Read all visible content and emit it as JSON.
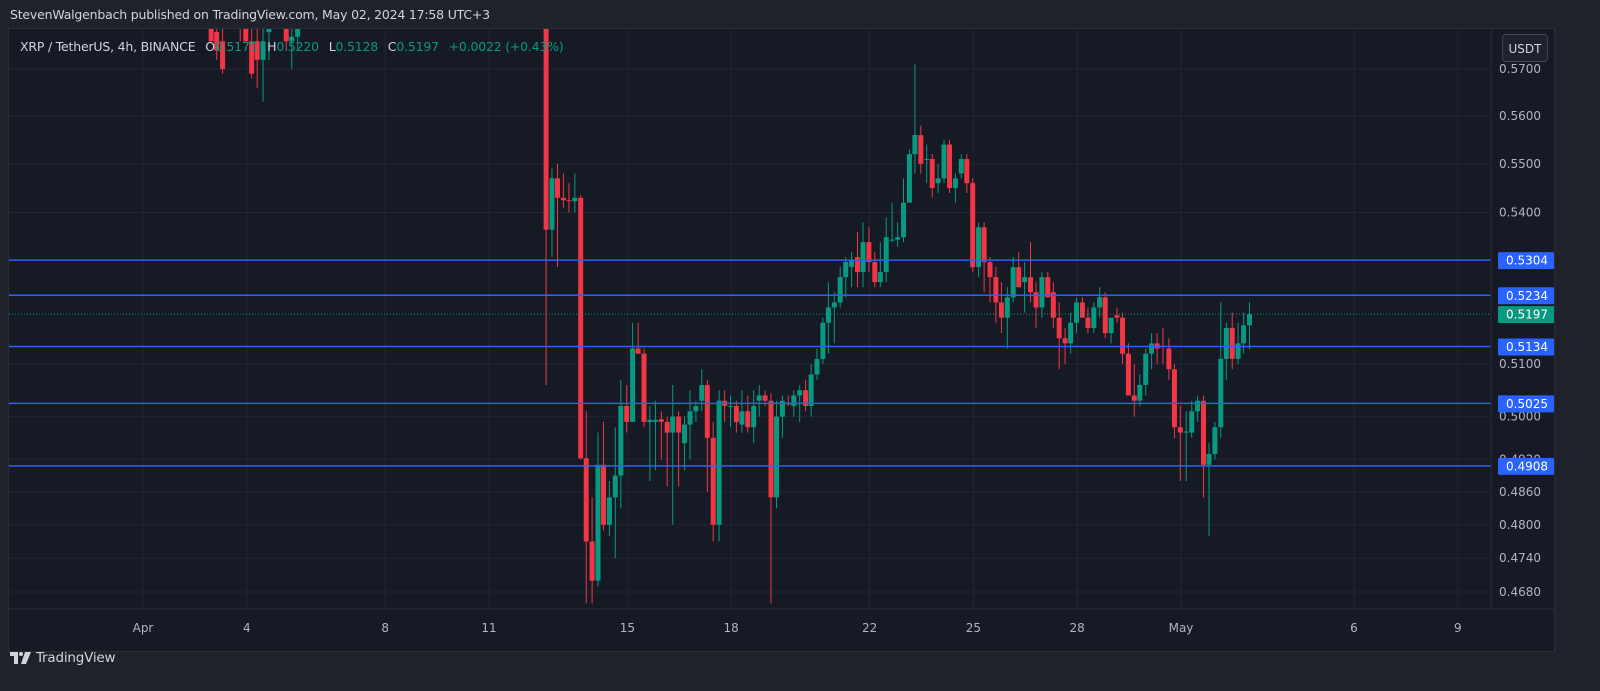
{
  "publisher_line": "StevenWalgenbach published on TradingView.com, May 02, 2024 17:58 UTC+3",
  "legend": {
    "symbol": "XRP / TetherUS, 4h, BINANCE",
    "o_label": "O",
    "o_value": "0.5175",
    "h_label": "H",
    "h_value": "0.5220",
    "l_label": "L",
    "l_value": "0.5128",
    "c_label": "C",
    "c_value": "0.5197",
    "change": "+0.0022 (+0.43%)"
  },
  "currency_button": "USDT",
  "footer": {
    "brand": "TradingView"
  },
  "colors": {
    "background": "#161a25",
    "grid": "#232632",
    "up": "#089981",
    "down": "#f23645",
    "level_line": "#2962ff",
    "last_price": "#089981",
    "axis_text": "#b2b5be"
  },
  "chart_data": {
    "type": "candlestick",
    "title": "XRP / TetherUS, 4h, BINANCE",
    "scale": "log",
    "ylabel": "USDT",
    "ylim": [
      0.4655,
      0.5735
    ],
    "y_ticks": [
      "0.5700",
      "0.5600",
      "0.5500",
      "0.5400",
      "0.5100",
      "0.5000",
      "0.4920",
      "0.4860",
      "0.4800",
      "0.4740",
      "0.4680"
    ],
    "x_ticks": [
      {
        "label": "Apr",
        "day": 0
      },
      {
        "label": "4",
        "day": 3
      },
      {
        "label": "8",
        "day": 7
      },
      {
        "label": "11",
        "day": 10
      },
      {
        "label": "15",
        "day": 14
      },
      {
        "label": "18",
        "day": 17
      },
      {
        "label": "22",
        "day": 21
      },
      {
        "label": "25",
        "day": 24
      },
      {
        "label": "28",
        "day": 27
      },
      {
        "label": "May",
        "day": 30
      },
      {
        "label": "6",
        "day": 35
      },
      {
        "label": "9",
        "day": 38
      }
    ],
    "horizontal_levels": [
      0.5304,
      0.5234,
      0.5134,
      0.5025,
      0.4908
    ],
    "last_price": 0.5197,
    "last_price_label": "0.5197",
    "level_labels": [
      "0.5304",
      "0.5234",
      "0.5134",
      "0.5025",
      "0.4908"
    ],
    "candles_note": "day offset from Apr 1 (4h candles), OHLC values",
    "candles": [
      {
        "d": 1.97,
        "o": 0.58,
        "h": 0.585,
        "l": 0.576,
        "c": 0.576
      },
      {
        "d": 2.13,
        "o": 0.578,
        "h": 0.582,
        "l": 0.572,
        "c": 0.574
      },
      {
        "d": 2.3,
        "o": 0.576,
        "h": 0.58,
        "l": 0.569,
        "c": 0.57
      },
      {
        "d": 2.81,
        "o": 0.581,
        "h": 0.583,
        "l": 0.576,
        "c": 0.58
      },
      {
        "d": 2.97,
        "o": 0.58,
        "h": 0.586,
        "l": 0.577,
        "c": 0.576
      },
      {
        "d": 3.14,
        "o": 0.576,
        "h": 0.579,
        "l": 0.568,
        "c": 0.569
      },
      {
        "d": 3.3,
        "o": 0.576,
        "h": 0.579,
        "l": 0.566,
        "c": 0.572
      },
      {
        "d": 3.47,
        "o": 0.572,
        "h": 0.584,
        "l": 0.563,
        "c": 0.576
      },
      {
        "d": 3.64,
        "o": 0.578,
        "h": 0.584,
        "l": 0.572,
        "c": 0.581
      },
      {
        "d": 4.14,
        "o": 0.58,
        "h": 0.584,
        "l": 0.574,
        "c": 0.576
      },
      {
        "d": 4.3,
        "o": 0.576,
        "h": 0.581,
        "l": 0.57,
        "c": 0.577
      },
      {
        "d": 4.47,
        "o": 0.577,
        "h": 0.586,
        "l": 0.574,
        "c": 0.583
      },
      {
        "d": 11.65,
        "o": 0.579,
        "h": 0.58,
        "l": 0.506,
        "c": 0.5365
      },
      {
        "d": 11.82,
        "o": 0.5365,
        "h": 0.549,
        "l": 0.531,
        "c": 0.547
      },
      {
        "d": 11.98,
        "o": 0.547,
        "h": 0.55,
        "l": 0.529,
        "c": 0.543
      },
      {
        "d": 12.15,
        "o": 0.543,
        "h": 0.548,
        "l": 0.541,
        "c": 0.5425
      },
      {
        "d": 12.31,
        "o": 0.5425,
        "h": 0.546,
        "l": 0.54,
        "c": 0.5423
      },
      {
        "d": 12.48,
        "o": 0.5423,
        "h": 0.548,
        "l": 0.54,
        "c": 0.543
      },
      {
        "d": 12.65,
        "o": 0.543,
        "h": 0.5435,
        "l": 0.492,
        "c": 0.4922
      },
      {
        "d": 12.81,
        "o": 0.4922,
        "h": 0.501,
        "l": 0.466,
        "c": 0.477
      },
      {
        "d": 12.98,
        "o": 0.477,
        "h": 0.485,
        "l": 0.466,
        "c": 0.47
      },
      {
        "d": 13.15,
        "o": 0.47,
        "h": 0.497,
        "l": 0.469,
        "c": 0.491
      },
      {
        "d": 13.31,
        "o": 0.491,
        "h": 0.499,
        "l": 0.479,
        "c": 0.48
      },
      {
        "d": 13.48,
        "o": 0.48,
        "h": 0.488,
        "l": 0.478,
        "c": 0.485
      },
      {
        "d": 13.65,
        "o": 0.485,
        "h": 0.498,
        "l": 0.474,
        "c": 0.489
      },
      {
        "d": 13.81,
        "o": 0.489,
        "h": 0.507,
        "l": 0.483,
        "c": 0.502
      },
      {
        "d": 13.98,
        "o": 0.502,
        "h": 0.506,
        "l": 0.497,
        "c": 0.499
      },
      {
        "d": 14.15,
        "o": 0.499,
        "h": 0.518,
        "l": 0.499,
        "c": 0.513
      },
      {
        "d": 14.31,
        "o": 0.513,
        "h": 0.518,
        "l": 0.512,
        "c": 0.512
      },
      {
        "d": 14.48,
        "o": 0.512,
        "h": 0.513,
        "l": 0.498,
        "c": 0.499
      },
      {
        "d": 14.65,
        "o": 0.499,
        "h": 0.502,
        "l": 0.488,
        "c": 0.4994
      },
      {
        "d": 14.81,
        "o": 0.499,
        "h": 0.503,
        "l": 0.49,
        "c": 0.4994
      },
      {
        "d": 14.98,
        "o": 0.4995,
        "h": 0.501,
        "l": 0.492,
        "c": 0.499
      },
      {
        "d": 15.15,
        "o": 0.499,
        "h": 0.5,
        "l": 0.487,
        "c": 0.497
      },
      {
        "d": 15.31,
        "o": 0.497,
        "h": 0.506,
        "l": 0.48,
        "c": 0.5
      },
      {
        "d": 15.48,
        "o": 0.5,
        "h": 0.501,
        "l": 0.487,
        "c": 0.497
      },
      {
        "d": 15.65,
        "o": 0.495,
        "h": 0.5,
        "l": 0.49,
        "c": 0.4985
      },
      {
        "d": 15.81,
        "o": 0.4985,
        "h": 0.505,
        "l": 0.492,
        "c": 0.501
      },
      {
        "d": 15.98,
        "o": 0.501,
        "h": 0.503,
        "l": 0.499,
        "c": 0.502
      },
      {
        "d": 16.15,
        "o": 0.503,
        "h": 0.509,
        "l": 0.501,
        "c": 0.506
      },
      {
        "d": 16.31,
        "o": 0.506,
        "h": 0.507,
        "l": 0.486,
        "c": 0.496
      },
      {
        "d": 16.48,
        "o": 0.496,
        "h": 0.499,
        "l": 0.477,
        "c": 0.48
      },
      {
        "d": 16.65,
        "o": 0.48,
        "h": 0.505,
        "l": 0.477,
        "c": 0.503
      },
      {
        "d": 16.81,
        "o": 0.503,
        "h": 0.505,
        "l": 0.499,
        "c": 0.502
      },
      {
        "d": 16.98,
        "o": 0.502,
        "h": 0.504,
        "l": 0.498,
        "c": 0.502
      },
      {
        "d": 17.15,
        "o": 0.502,
        "h": 0.503,
        "l": 0.497,
        "c": 0.499
      },
      {
        "d": 17.31,
        "o": 0.4985,
        "h": 0.505,
        "l": 0.497,
        "c": 0.501
      },
      {
        "d": 17.48,
        "o": 0.501,
        "h": 0.504,
        "l": 0.497,
        "c": 0.498
      },
      {
        "d": 17.65,
        "o": 0.498,
        "h": 0.505,
        "l": 0.495,
        "c": 0.502
      },
      {
        "d": 17.81,
        "o": 0.503,
        "h": 0.506,
        "l": 0.5,
        "c": 0.504
      },
      {
        "d": 17.98,
        "o": 0.504,
        "h": 0.505,
        "l": 0.502,
        "c": 0.503
      },
      {
        "d": 18.15,
        "o": 0.503,
        "h": 0.5045,
        "l": 0.466,
        "c": 0.485
      },
      {
        "d": 18.31,
        "o": 0.485,
        "h": 0.503,
        "l": 0.483,
        "c": 0.5
      },
      {
        "d": 18.48,
        "o": 0.5,
        "h": 0.504,
        "l": 0.496,
        "c": 0.503
      },
      {
        "d": 18.65,
        "o": 0.5025,
        "h": 0.504,
        "l": 0.502,
        "c": 0.5024
      },
      {
        "d": 18.81,
        "o": 0.502,
        "h": 0.505,
        "l": 0.5,
        "c": 0.504
      },
      {
        "d": 18.98,
        "o": 0.504,
        "h": 0.506,
        "l": 0.499,
        "c": 0.505
      },
      {
        "d": 19.15,
        "o": 0.505,
        "h": 0.507,
        "l": 0.501,
        "c": 0.502
      },
      {
        "d": 19.31,
        "o": 0.502,
        "h": 0.51,
        "l": 0.5,
        "c": 0.508
      },
      {
        "d": 19.48,
        "o": 0.508,
        "h": 0.513,
        "l": 0.507,
        "c": 0.511
      },
      {
        "d": 19.65,
        "o": 0.511,
        "h": 0.519,
        "l": 0.51,
        "c": 0.518
      },
      {
        "d": 19.81,
        "o": 0.518,
        "h": 0.526,
        "l": 0.512,
        "c": 0.521
      },
      {
        "d": 19.98,
        "o": 0.521,
        "h": 0.524,
        "l": 0.514,
        "c": 0.522
      },
      {
        "d": 20.15,
        "o": 0.522,
        "h": 0.529,
        "l": 0.521,
        "c": 0.527
      },
      {
        "d": 20.31,
        "o": 0.527,
        "h": 0.531,
        "l": 0.523,
        "c": 0.53
      },
      {
        "d": 20.48,
        "o": 0.529,
        "h": 0.532,
        "l": 0.525,
        "c": 0.5305
      },
      {
        "d": 20.65,
        "o": 0.531,
        "h": 0.536,
        "l": 0.525,
        "c": 0.528
      },
      {
        "d": 20.81,
        "o": 0.528,
        "h": 0.538,
        "l": 0.525,
        "c": 0.534
      },
      {
        "d": 20.98,
        "o": 0.534,
        "h": 0.537,
        "l": 0.528,
        "c": 0.53
      },
      {
        "d": 21.15,
        "o": 0.53,
        "h": 0.532,
        "l": 0.525,
        "c": 0.526
      },
      {
        "d": 21.31,
        "o": 0.526,
        "h": 0.534,
        "l": 0.525,
        "c": 0.528
      },
      {
        "d": 21.48,
        "o": 0.528,
        "h": 0.539,
        "l": 0.526,
        "c": 0.535
      },
      {
        "d": 21.65,
        "o": 0.5345,
        "h": 0.542,
        "l": 0.534,
        "c": 0.5345
      },
      {
        "d": 21.81,
        "o": 0.5345,
        "h": 0.538,
        "l": 0.533,
        "c": 0.535
      },
      {
        "d": 21.98,
        "o": 0.535,
        "h": 0.547,
        "l": 0.534,
        "c": 0.542
      },
      {
        "d": 22.15,
        "o": 0.542,
        "h": 0.553,
        "l": 0.542,
        "c": 0.552
      },
      {
        "d": 22.31,
        "o": 0.552,
        "h": 0.571,
        "l": 0.548,
        "c": 0.556
      },
      {
        "d": 22.48,
        "o": 0.556,
        "h": 0.558,
        "l": 0.548,
        "c": 0.55
      },
      {
        "d": 22.65,
        "o": 0.551,
        "h": 0.554,
        "l": 0.546,
        "c": 0.551
      },
      {
        "d": 22.81,
        "o": 0.551,
        "h": 0.552,
        "l": 0.543,
        "c": 0.545
      },
      {
        "d": 22.98,
        "o": 0.546,
        "h": 0.55,
        "l": 0.544,
        "c": 0.547
      },
      {
        "d": 23.15,
        "o": 0.547,
        "h": 0.555,
        "l": 0.546,
        "c": 0.554
      },
      {
        "d": 23.31,
        "o": 0.554,
        "h": 0.555,
        "l": 0.544,
        "c": 0.545
      },
      {
        "d": 23.48,
        "o": 0.545,
        "h": 0.548,
        "l": 0.542,
        "c": 0.547
      },
      {
        "d": 23.65,
        "o": 0.548,
        "h": 0.552,
        "l": 0.547,
        "c": 0.551
      },
      {
        "d": 23.81,
        "o": 0.551,
        "h": 0.552,
        "l": 0.544,
        "c": 0.546
      },
      {
        "d": 23.98,
        "o": 0.546,
        "h": 0.547,
        "l": 0.528,
        "c": 0.529
      },
      {
        "d": 24.15,
        "o": 0.529,
        "h": 0.538,
        "l": 0.527,
        "c": 0.537
      },
      {
        "d": 24.31,
        "o": 0.537,
        "h": 0.538,
        "l": 0.524,
        "c": 0.53
      },
      {
        "d": 24.48,
        "o": 0.53,
        "h": 0.531,
        "l": 0.522,
        "c": 0.527
      },
      {
        "d": 24.65,
        "o": 0.527,
        "h": 0.529,
        "l": 0.518,
        "c": 0.522
      },
      {
        "d": 24.81,
        "o": 0.522,
        "h": 0.526,
        "l": 0.516,
        "c": 0.519
      },
      {
        "d": 24.98,
        "o": 0.519,
        "h": 0.525,
        "l": 0.513,
        "c": 0.523
      },
      {
        "d": 25.15,
        "o": 0.523,
        "h": 0.531,
        "l": 0.522,
        "c": 0.529
      },
      {
        "d": 25.31,
        "o": 0.529,
        "h": 0.532,
        "l": 0.525,
        "c": 0.525
      },
      {
        "d": 25.48,
        "o": 0.526,
        "h": 0.53,
        "l": 0.52,
        "c": 0.527
      },
      {
        "d": 25.65,
        "o": 0.527,
        "h": 0.534,
        "l": 0.522,
        "c": 0.524
      },
      {
        "d": 25.81,
        "o": 0.524,
        "h": 0.526,
        "l": 0.517,
        "c": 0.521
      },
      {
        "d": 25.98,
        "o": 0.521,
        "h": 0.528,
        "l": 0.519,
        "c": 0.527
      },
      {
        "d": 26.15,
        "o": 0.527,
        "h": 0.528,
        "l": 0.523,
        "c": 0.523
      },
      {
        "d": 26.31,
        "o": 0.524,
        "h": 0.526,
        "l": 0.517,
        "c": 0.519
      },
      {
        "d": 26.48,
        "o": 0.519,
        "h": 0.522,
        "l": 0.509,
        "c": 0.515
      },
      {
        "d": 26.65,
        "o": 0.515,
        "h": 0.517,
        "l": 0.51,
        "c": 0.514
      },
      {
        "d": 26.81,
        "o": 0.514,
        "h": 0.52,
        "l": 0.512,
        "c": 0.518
      },
      {
        "d": 26.98,
        "o": 0.518,
        "h": 0.523,
        "l": 0.516,
        "c": 0.522
      },
      {
        "d": 27.15,
        "o": 0.522,
        "h": 0.523,
        "l": 0.521,
        "c": 0.519
      },
      {
        "d": 27.31,
        "o": 0.519,
        "h": 0.521,
        "l": 0.516,
        "c": 0.517
      },
      {
        "d": 27.48,
        "o": 0.517,
        "h": 0.522,
        "l": 0.516,
        "c": 0.521
      },
      {
        "d": 27.65,
        "o": 0.521,
        "h": 0.525,
        "l": 0.519,
        "c": 0.523
      },
      {
        "d": 27.81,
        "o": 0.523,
        "h": 0.524,
        "l": 0.515,
        "c": 0.516
      },
      {
        "d": 27.98,
        "o": 0.516,
        "h": 0.518,
        "l": 0.514,
        "c": 0.519
      },
      {
        "d": 28.15,
        "o": 0.5195,
        "h": 0.521,
        "l": 0.518,
        "c": 0.519
      },
      {
        "d": 28.31,
        "o": 0.519,
        "h": 0.52,
        "l": 0.51,
        "c": 0.512
      },
      {
        "d": 28.48,
        "o": 0.512,
        "h": 0.514,
        "l": 0.507,
        "c": 0.504
      },
      {
        "d": 28.65,
        "o": 0.504,
        "h": 0.51,
        "l": 0.5,
        "c": 0.503
      },
      {
        "d": 28.81,
        "o": 0.503,
        "h": 0.508,
        "l": 0.502,
        "c": 0.506
      },
      {
        "d": 28.98,
        "o": 0.506,
        "h": 0.513,
        "l": 0.504,
        "c": 0.512
      },
      {
        "d": 29.15,
        "o": 0.512,
        "h": 0.516,
        "l": 0.509,
        "c": 0.514
      },
      {
        "d": 29.31,
        "o": 0.514,
        "h": 0.516,
        "l": 0.51,
        "c": 0.513
      },
      {
        "d": 29.48,
        "o": 0.5135,
        "h": 0.517,
        "l": 0.51,
        "c": 0.5134
      },
      {
        "d": 29.65,
        "o": 0.513,
        "h": 0.515,
        "l": 0.507,
        "c": 0.509
      },
      {
        "d": 29.81,
        "o": 0.509,
        "h": 0.51,
        "l": 0.496,
        "c": 0.498
      },
      {
        "d": 29.98,
        "o": 0.498,
        "h": 0.502,
        "l": 0.488,
        "c": 0.497
      },
      {
        "d": 30.15,
        "o": 0.497,
        "h": 0.501,
        "l": 0.488,
        "c": 0.4972
      },
      {
        "d": 30.31,
        "o": 0.497,
        "h": 0.503,
        "l": 0.496,
        "c": 0.501
      },
      {
        "d": 30.48,
        "o": 0.501,
        "h": 0.504,
        "l": 0.499,
        "c": 0.503
      },
      {
        "d": 30.65,
        "o": 0.503,
        "h": 0.504,
        "l": 0.485,
        "c": 0.491
      },
      {
        "d": 30.81,
        "o": 0.491,
        "h": 0.495,
        "l": 0.478,
        "c": 0.493
      },
      {
        "d": 30.98,
        "o": 0.493,
        "h": 0.499,
        "l": 0.492,
        "c": 0.498
      },
      {
        "d": 31.15,
        "o": 0.498,
        "h": 0.522,
        "l": 0.496,
        "c": 0.511
      },
      {
        "d": 31.31,
        "o": 0.511,
        "h": 0.518,
        "l": 0.507,
        "c": 0.517
      },
      {
        "d": 31.48,
        "o": 0.517,
        "h": 0.52,
        "l": 0.509,
        "c": 0.511
      },
      {
        "d": 31.65,
        "o": 0.511,
        "h": 0.518,
        "l": 0.51,
        "c": 0.514
      },
      {
        "d": 31.81,
        "o": 0.514,
        "h": 0.52,
        "l": 0.512,
        "c": 0.5175
      },
      {
        "d": 31.98,
        "o": 0.5175,
        "h": 0.522,
        "l": 0.5128,
        "c": 0.5197
      }
    ]
  }
}
